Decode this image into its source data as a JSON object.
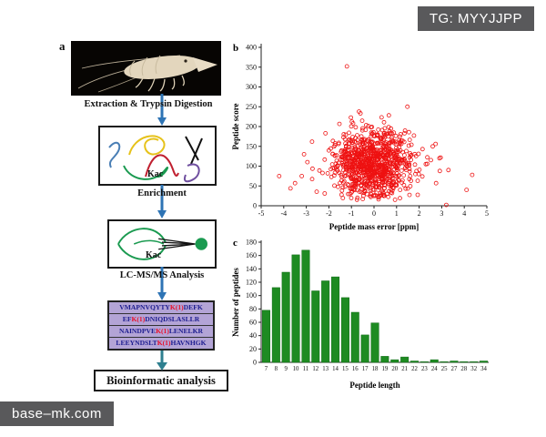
{
  "watermarks": {
    "top_right": "TG: MYYJJPP",
    "bottom_left": "base–mk.com"
  },
  "palette": {
    "arrow_blue": "#2e74b5",
    "arrow_teal": "#2e7f8f",
    "scatter_red": "#ee1111",
    "bar_green": "#1e8b22",
    "peptide_bg": "#b3a4d6",
    "watermark_bg": "#59595b"
  },
  "panel_a": {
    "label": "a",
    "caption_extraction": "Extraction & Trypsin Digestion",
    "protein_box_label": "Kac",
    "caption_enrichment": "Enrichment",
    "enrichment_box_label": "Kac",
    "caption_lcms": "LC-MS/MS Analysis",
    "peptides": [
      {
        "pre": "VMAPNVQYTY",
        "mod": "K(1)",
        "post": "DEFK"
      },
      {
        "pre": "EF",
        "mod": "K(1)",
        "post": "DNIQDSLASLLR"
      },
      {
        "pre": "NAINDPVE",
        "mod": "K(1)",
        "post": "LENELKR"
      },
      {
        "pre": "LEEYNDSLT",
        "mod": "K(1)",
        "post": "HAVNHGK"
      }
    ],
    "final_box": "Bioinformatic analysis"
  },
  "chart_data": [
    {
      "id": "scatter_b",
      "type": "scatter",
      "panel_label": "b",
      "xlabel": "Peptide mass error [ppm]",
      "ylabel": "Peptide score",
      "xlim": [
        -5,
        5
      ],
      "ylim": [
        0,
        400
      ],
      "xticks": [
        -5,
        -4,
        -3,
        -2,
        -1,
        0,
        1,
        2,
        3,
        4,
        5
      ],
      "yticks": [
        0,
        50,
        100,
        150,
        200,
        250,
        300,
        350,
        400
      ],
      "marker": "open-circle",
      "color": "#ee1111",
      "cluster": {
        "n": 950,
        "seed": 7,
        "x_mean": -0.05,
        "x_sd": 0.85,
        "y_mean": 108,
        "y_sd": 42,
        "x_range": [
          -3,
          3
        ],
        "y_range": [
          15,
          272
        ]
      },
      "outliers": [
        [
          -1.2,
          352
        ],
        [
          -4.2,
          75
        ],
        [
          -3.7,
          44
        ],
        [
          -3.5,
          57
        ],
        [
          -3.2,
          75
        ],
        [
          -3.1,
          130
        ],
        [
          -2.95,
          110
        ],
        [
          3.2,
          2
        ],
        [
          3.3,
          90
        ],
        [
          4.1,
          40
        ],
        [
          4.35,
          78
        ],
        [
          2.6,
          150
        ],
        [
          2.75,
          57
        ],
        [
          2.9,
          120
        ]
      ]
    },
    {
      "id": "bars_c",
      "type": "bar",
      "panel_label": "c",
      "xlabel": "Peptide length",
      "ylabel": "Number of peptides",
      "ylim": [
        0,
        180
      ],
      "yticks": [
        0,
        20,
        40,
        60,
        80,
        100,
        120,
        140,
        160,
        180
      ],
      "color": "#1e8b22",
      "categories": [
        "7",
        "8",
        "9",
        "10",
        "11",
        "12",
        "13",
        "14",
        "15",
        "16",
        "17",
        "18",
        "19",
        "20",
        "21",
        "22",
        "23",
        "24",
        "25",
        "27",
        "28",
        "32",
        "34"
      ],
      "values": [
        78,
        112,
        135,
        161,
        168,
        107,
        122,
        128,
        97,
        75,
        41,
        59,
        9,
        4,
        8,
        2,
        1,
        4,
        1,
        2,
        1,
        1,
        2
      ]
    }
  ]
}
